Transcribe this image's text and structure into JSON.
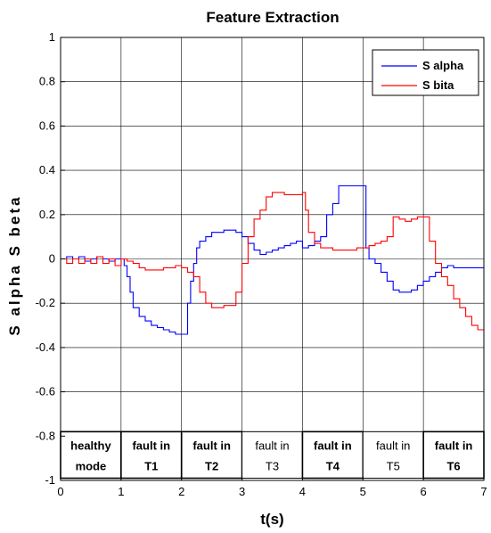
{
  "chart_data": {
    "type": "line",
    "title": "Feature Extraction",
    "xlabel": "t(s)",
    "ylabel": "S alpha S beta",
    "xlim": [
      0,
      7
    ],
    "ylim": [
      -1,
      1
    ],
    "xticks": [
      "0",
      "1",
      "2",
      "3",
      "4",
      "5",
      "6",
      "7"
    ],
    "yticks": [
      "-1",
      "-0.8",
      "-0.6",
      "-0.4",
      "-0.2",
      "0",
      "0.2",
      "0.4",
      "0.6",
      "0.8",
      "1"
    ],
    "grid": true,
    "legend_position": "top-right",
    "series": [
      {
        "name": "S alpha",
        "color": "#0000ff",
        "x": [
          0,
          0.1,
          0.2,
          0.3,
          0.4,
          0.5,
          0.6,
          0.7,
          0.8,
          0.9,
          1.0,
          1.05,
          1.1,
          1.15,
          1.2,
          1.3,
          1.4,
          1.5,
          1.6,
          1.7,
          1.8,
          1.9,
          2.0,
          2.1,
          2.15,
          2.2,
          2.25,
          2.3,
          2.4,
          2.5,
          2.6,
          2.7,
          2.8,
          2.9,
          3.0,
          3.1,
          3.2,
          3.3,
          3.4,
          3.5,
          3.6,
          3.7,
          3.8,
          3.9,
          4.0,
          4.1,
          4.2,
          4.3,
          4.4,
          4.5,
          4.6,
          4.7,
          4.8,
          4.9,
          5.0,
          5.05,
          5.1,
          5.2,
          5.3,
          5.4,
          5.5,
          5.6,
          5.7,
          5.8,
          5.9,
          6.0,
          6.1,
          6.2,
          6.3,
          6.4,
          6.5,
          7.0
        ],
        "y": [
          0,
          0.01,
          0.0,
          0.01,
          -0.01,
          0.0,
          0.01,
          0.0,
          -0.01,
          0.0,
          0.0,
          -0.03,
          -0.08,
          -0.15,
          -0.22,
          -0.26,
          -0.28,
          -0.3,
          -0.31,
          -0.32,
          -0.33,
          -0.34,
          -0.34,
          -0.2,
          -0.1,
          -0.02,
          0.05,
          0.08,
          0.1,
          0.12,
          0.12,
          0.13,
          0.13,
          0.12,
          0.1,
          0.07,
          0.04,
          0.02,
          0.03,
          0.04,
          0.05,
          0.06,
          0.07,
          0.08,
          0.05,
          0.06,
          0.08,
          0.1,
          0.2,
          0.25,
          0.33,
          0.33,
          0.33,
          0.33,
          0.33,
          0.05,
          0.0,
          -0.02,
          -0.06,
          -0.1,
          -0.14,
          -0.15,
          -0.15,
          -0.14,
          -0.12,
          -0.1,
          -0.08,
          -0.06,
          -0.04,
          -0.03,
          -0.04,
          -0.04
        ]
      },
      {
        "name": "S bita",
        "color": "#ff0000",
        "x": [
          0,
          0.1,
          0.2,
          0.3,
          0.4,
          0.5,
          0.6,
          0.7,
          0.8,
          0.9,
          1.0,
          1.1,
          1.2,
          1.3,
          1.4,
          1.5,
          1.6,
          1.7,
          1.8,
          1.9,
          2.0,
          2.1,
          2.2,
          2.3,
          2.4,
          2.5,
          2.6,
          2.7,
          2.8,
          2.9,
          3.0,
          3.1,
          3.2,
          3.3,
          3.4,
          3.5,
          3.6,
          3.7,
          3.8,
          3.9,
          4.0,
          4.05,
          4.1,
          4.2,
          4.3,
          4.4,
          4.5,
          4.6,
          4.7,
          4.8,
          4.9,
          5.0,
          5.1,
          5.2,
          5.3,
          5.4,
          5.5,
          5.6,
          5.7,
          5.8,
          5.9,
          6.0,
          6.1,
          6.2,
          6.3,
          6.4,
          6.5,
          6.6,
          6.7,
          6.8,
          6.9,
          7.0
        ],
        "y": [
          0,
          -0.02,
          0.0,
          -0.02,
          0.0,
          -0.02,
          0.01,
          -0.02,
          0.0,
          -0.03,
          0.0,
          -0.01,
          -0.02,
          -0.04,
          -0.05,
          -0.05,
          -0.05,
          -0.04,
          -0.04,
          -0.03,
          -0.04,
          -0.06,
          -0.08,
          -0.15,
          -0.2,
          -0.22,
          -0.22,
          -0.21,
          -0.21,
          -0.15,
          -0.02,
          0.1,
          0.18,
          0.22,
          0.28,
          0.3,
          0.3,
          0.29,
          0.29,
          0.29,
          0.3,
          0.22,
          0.12,
          0.07,
          0.05,
          0.05,
          0.04,
          0.04,
          0.04,
          0.04,
          0.05,
          0.05,
          0.06,
          0.07,
          0.08,
          0.1,
          0.19,
          0.18,
          0.17,
          0.18,
          0.19,
          0.19,
          0.08,
          -0.02,
          -0.08,
          -0.12,
          -0.18,
          -0.22,
          -0.26,
          -0.3,
          -0.32,
          -0.32
        ]
      }
    ],
    "segments": [
      {
        "label1": "healthy",
        "label2": "mode",
        "x0": 0,
        "x1": 1,
        "bold": true
      },
      {
        "label1": "fault in",
        "label2": "T1",
        "x0": 1,
        "x1": 2,
        "bold": true
      },
      {
        "label1": "fault in",
        "label2": "T2",
        "x0": 2,
        "x1": 3,
        "bold": true
      },
      {
        "label1": "fault in",
        "label2": "T3",
        "x0": 3,
        "x1": 4,
        "bold": false
      },
      {
        "label1": "fault in",
        "label2": "T4",
        "x0": 4,
        "x1": 5,
        "bold": true
      },
      {
        "label1": "fault in",
        "label2": "T5",
        "x0": 5,
        "x1": 6,
        "bold": false
      },
      {
        "label1": "fault in",
        "label2": "T6",
        "x0": 6,
        "x1": 7,
        "bold": true
      }
    ]
  }
}
